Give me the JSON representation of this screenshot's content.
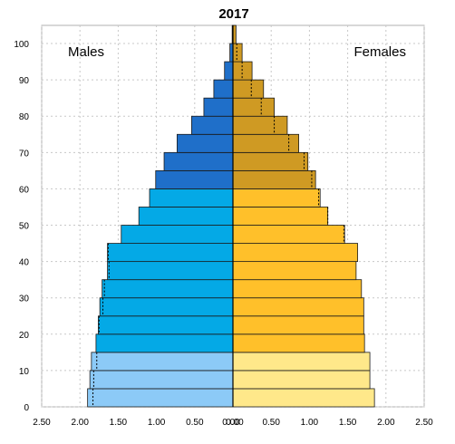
{
  "chart_data": {
    "type": "bar",
    "title": "2017",
    "left_label": "Males",
    "right_label": "Females",
    "y_ticks": [
      "0",
      "10",
      "20",
      "30",
      "40",
      "50",
      "60",
      "70",
      "80",
      "90",
      "100"
    ],
    "x_ticks_left": [
      "2.50",
      "2.00",
      "1.50",
      "1.00",
      "0.50",
      "0.00"
    ],
    "x_ticks_right": [
      "0.00",
      "0.50",
      "1.00",
      "1.50",
      "2.00",
      "2.50"
    ],
    "xlim": [
      -2.5,
      2.5
    ],
    "ylim": [
      0,
      100
    ],
    "grid": true,
    "age_groups": [
      {
        "start": 0,
        "males": 1.9,
        "females": 1.85,
        "males_ref": 1.83,
        "females_ref": null
      },
      {
        "start": 5,
        "males": 1.87,
        "females": 1.79,
        "males_ref": 1.82,
        "females_ref": null
      },
      {
        "start": 10,
        "males": 1.85,
        "females": 1.79,
        "males_ref": 1.78,
        "females_ref": null
      },
      {
        "start": 15,
        "males": 1.79,
        "females": 1.72,
        "males_ref": null,
        "females_ref": null
      },
      {
        "start": 20,
        "males": 1.76,
        "females": 1.71,
        "males_ref": 1.75,
        "females_ref": null
      },
      {
        "start": 25,
        "males": 1.74,
        "females": 1.71,
        "males_ref": 1.7,
        "females_ref": null
      },
      {
        "start": 30,
        "males": 1.71,
        "females": 1.68,
        "males_ref": 1.68,
        "females_ref": null
      },
      {
        "start": 35,
        "males": 1.64,
        "females": 1.61,
        "males_ref": 1.62,
        "females_ref": null
      },
      {
        "start": 40,
        "males": 1.64,
        "females": 1.63,
        "males_ref": 1.63,
        "females_ref": null
      },
      {
        "start": 45,
        "males": 1.46,
        "females": 1.46,
        "males_ref": null,
        "females_ref": 1.45
      },
      {
        "start": 50,
        "males": 1.23,
        "females": 1.24,
        "males_ref": null,
        "females_ref": 1.24
      },
      {
        "start": 55,
        "males": 1.09,
        "females": 1.14,
        "males_ref": null,
        "females_ref": 1.12
      },
      {
        "start": 60,
        "males": 1.01,
        "females": 1.08,
        "males_ref": null,
        "females_ref": 1.03
      },
      {
        "start": 65,
        "males": 0.9,
        "females": 0.98,
        "males_ref": null,
        "females_ref": 0.93
      },
      {
        "start": 70,
        "males": 0.73,
        "females": 0.86,
        "males_ref": null,
        "females_ref": 0.73
      },
      {
        "start": 75,
        "males": 0.54,
        "females": 0.71,
        "males_ref": null,
        "females_ref": 0.54
      },
      {
        "start": 80,
        "males": 0.38,
        "females": 0.54,
        "males_ref": null,
        "females_ref": 0.37
      },
      {
        "start": 85,
        "males": 0.25,
        "females": 0.4,
        "males_ref": null,
        "females_ref": 0.24
      },
      {
        "start": 90,
        "males": 0.11,
        "females": 0.25,
        "males_ref": null,
        "females_ref": 0.12
      },
      {
        "start": 95,
        "males": 0.04,
        "females": 0.12,
        "males_ref": null,
        "females_ref": 0.05
      },
      {
        "start": 100,
        "males": 0.01,
        "females": 0.04,
        "males_ref": null,
        "females_ref": null
      }
    ],
    "colors": {
      "males_young": "#8ccaf7",
      "males_working": "#04a9e6",
      "males_old": "#1f6fc9",
      "females_young": "#ffe88a",
      "females_working": "#ffc02a",
      "females_old": "#cf9a23",
      "grid": "#c8c8c8"
    },
    "color_bands": {
      "young_max_start": 10,
      "working_max_start": 60
    }
  }
}
